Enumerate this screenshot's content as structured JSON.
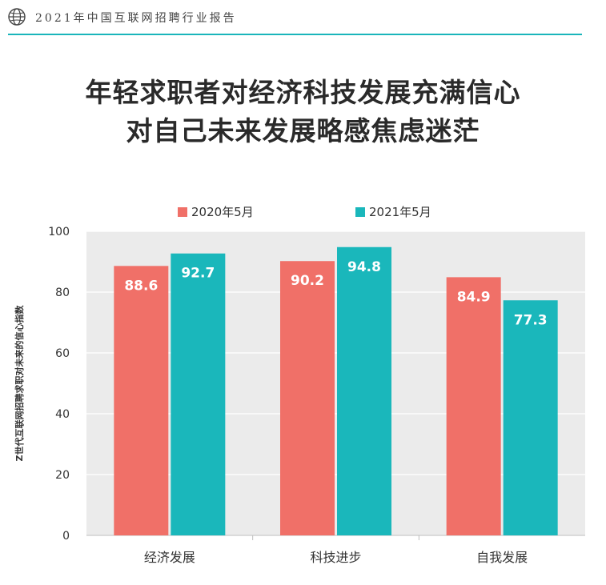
{
  "header": {
    "text": "2021年中国互联网招聘行业报告",
    "icon": "globe-icon",
    "accent_color": "#1ab5bb"
  },
  "title": {
    "line1": "年轻求职者对经济科技发展充满信心",
    "line2": "对自己未来发展略感焦虑迷茫"
  },
  "chart_data": {
    "type": "bar",
    "categories": [
      "经济发展",
      "科技进步",
      "自我发展"
    ],
    "series": [
      {
        "name": "2020年5月",
        "values": [
          88.6,
          90.2,
          84.9
        ],
        "color": "#f07068"
      },
      {
        "name": "2021年5月",
        "values": [
          92.7,
          94.8,
          77.3
        ],
        "color": "#1ab7bb"
      }
    ],
    "ylabel": "Z世代互联网招聘求职对未来的信心指数",
    "xlabel": "",
    "ylim": [
      0,
      100
    ],
    "yticks": [
      0,
      20,
      40,
      60,
      80,
      100
    ],
    "grid": true,
    "legend": "top",
    "data_labels": true,
    "plot_background": "#ebebeb"
  }
}
